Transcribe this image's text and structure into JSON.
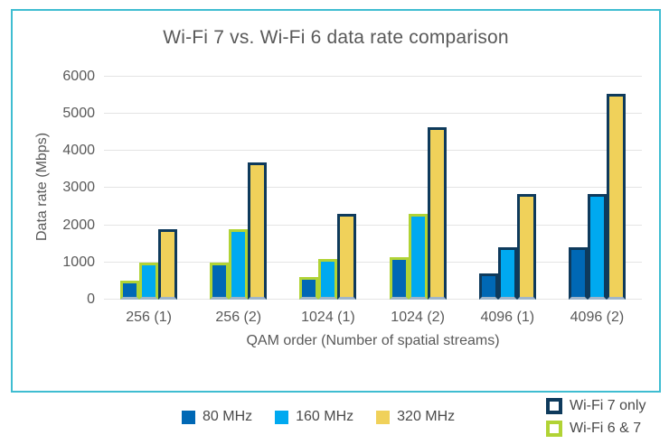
{
  "chart_data": {
    "type": "bar",
    "title": "Wi-Fi 7 vs. Wi-Fi 6 data rate comparison",
    "xlabel": "QAM order (Number of spatial streams)",
    "ylabel": "Data rate (Mbps)",
    "ylim": [
      0,
      6000
    ],
    "yticks": [
      0,
      1000,
      2000,
      3000,
      4000,
      5000,
      6000
    ],
    "grid": "horizontal",
    "legend_position": "bottom",
    "categories": [
      "256 (1)",
      "256 (2)",
      "1024 (1)",
      "1024 (2)",
      "4096 (1)",
      "4096 (2)"
    ],
    "series": [
      {
        "name": "80 MHz",
        "color": "#0068B5",
        "values": [
          500,
          1000,
          600,
          1150,
          700,
          1400
        ],
        "generation": [
          "6and7",
          "6and7",
          "6and7",
          "6and7",
          "7only",
          "7only"
        ]
      },
      {
        "name": "160 MHz",
        "color": "#00A9F0",
        "values": [
          1000,
          1900,
          1100,
          2300,
          1400,
          2850
        ],
        "generation": [
          "6and7",
          "6and7",
          "6and7",
          "6and7",
          "7only",
          "7only"
        ]
      },
      {
        "name": "320 MHz",
        "color": "#F0D15A",
        "values": [
          1900,
          3700,
          2300,
          4650,
          2850,
          5550
        ],
        "generation": [
          "7only",
          "7only",
          "7only",
          "7only",
          "7only",
          "7only"
        ]
      }
    ],
    "generations": [
      {
        "id": "7only",
        "label": "Wi-Fi 7 only",
        "outline": "#0E3A5C"
      },
      {
        "id": "6and7",
        "label": "Wi-Fi 6 & 7",
        "outline": "#B1D335"
      }
    ],
    "frame_color": "#3FBDD1"
  }
}
